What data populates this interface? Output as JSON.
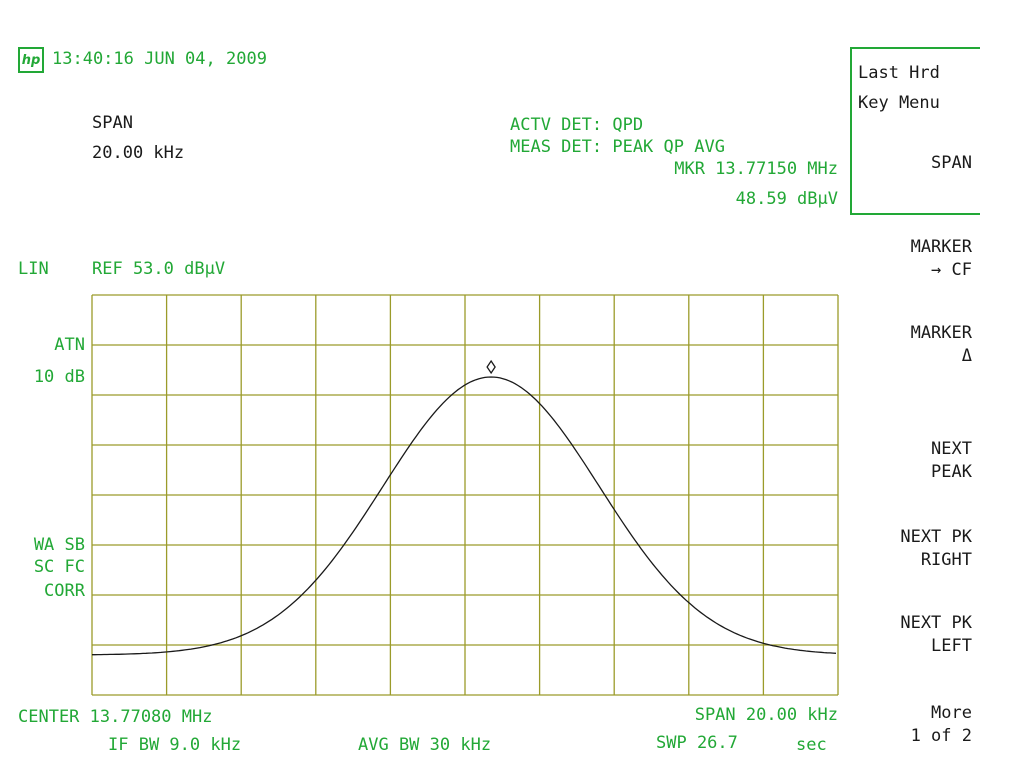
{
  "header": {
    "logo_icon": "hp-logo-icon",
    "datetime": "13:40:16 JUN 04, 2009"
  },
  "span_readout": {
    "label": "SPAN",
    "value": "20.00 kHz"
  },
  "detectors": {
    "active": "ACTV DET: QPD",
    "measure": "MEAS DET: PEAK QP AVG",
    "marker_freq": "MKR 13.77150 MHz",
    "marker_amp": "48.59 dBµV"
  },
  "scale": {
    "mode": "LIN",
    "ref": "REF 53.0 dBµV"
  },
  "left_annotations": {
    "atn_label": "ATN",
    "atn_value": "10 dB",
    "corr_line1": "WA SB",
    "corr_line2": "SC FC",
    "corr_line3": "CORR"
  },
  "footer": {
    "center": "CENTER 13.77080 MHz",
    "span": "SPAN 20.00 kHz",
    "if_bw": "IF BW 9.0 kHz",
    "avg_bw": "AVG BW 30 kHz",
    "swp": "SWP 26.7",
    "swp_unit": "sec"
  },
  "softkeys": {
    "title_line1": "Last Hrd",
    "title_line2": "Key Menu",
    "span": "SPAN",
    "marker_cf": "MARKER\n→ CF",
    "marker_delta": "MARKER\nΔ",
    "next_peak": "NEXT\nPEAK",
    "next_pk_right": "NEXT PK\nRIGHT",
    "next_pk_left": "NEXT PK\nLEFT",
    "more": "More\n1 of 2"
  },
  "colors": {
    "annotation": "#22a836",
    "grid": "#9b9b2a",
    "trace": "#1a1a1a"
  },
  "trace": {
    "center_mhz": 13.7708,
    "span_khz": 20.0,
    "ref_dbuv": 53.0,
    "scale": "linear",
    "marker_mhz": 13.7715,
    "marker_dbuv": 48.59,
    "peak_fraction": 0.795,
    "floor_fraction": 0.0,
    "sigma_divisions": 1.45
  }
}
